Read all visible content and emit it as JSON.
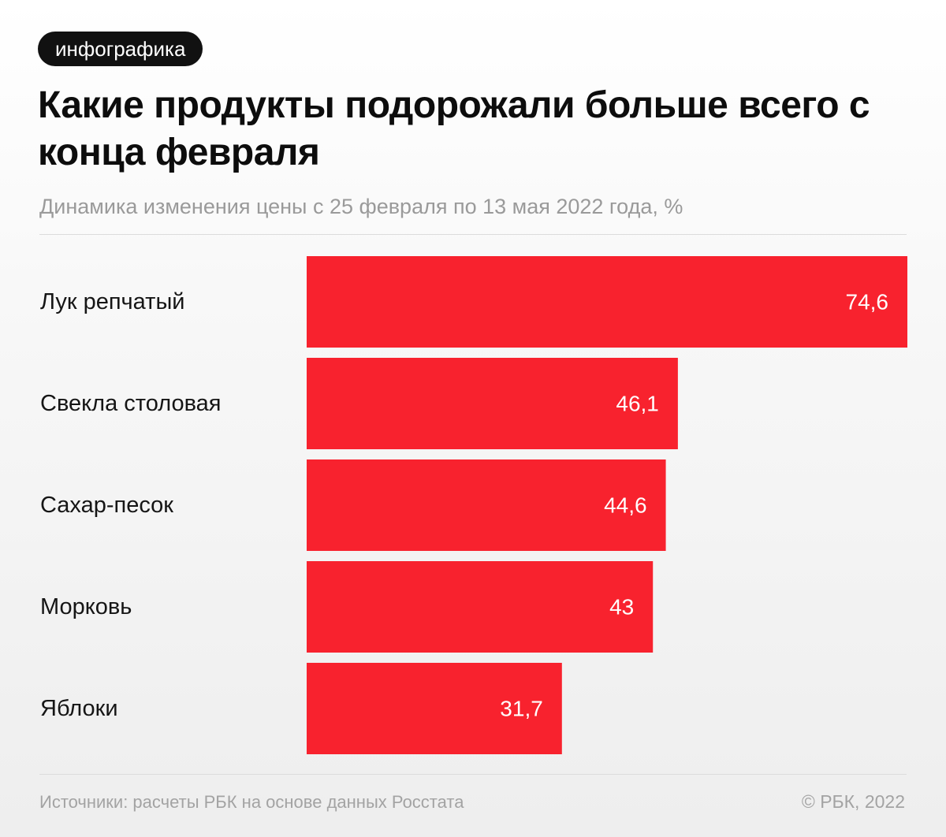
{
  "badge": "инфографика",
  "title": "Какие продукты подорожали больше всего с конца февраля",
  "subtitle": "Динамика изменения цены с 25 февраля по 13 мая 2022 года, %",
  "footer": {
    "source": "Источники: расчеты РБК на основе данных Росстата",
    "copyright": "© РБК, 2022"
  },
  "colors": {
    "bar": "#f8222e",
    "badge_bg": "#111111"
  },
  "chart_data": {
    "type": "bar",
    "orientation": "horizontal",
    "categories": [
      "Лук репчатый",
      "Свекла столовая",
      "Сахар-песок",
      "Морковь",
      "Яблоки"
    ],
    "values": [
      74.6,
      46.1,
      44.6,
      43,
      31.7
    ],
    "value_labels": [
      "74,6",
      "46,1",
      "44,6",
      "43",
      "31,7"
    ],
    "xlim": [
      0,
      74.6
    ],
    "grid": false,
    "legend": false
  }
}
